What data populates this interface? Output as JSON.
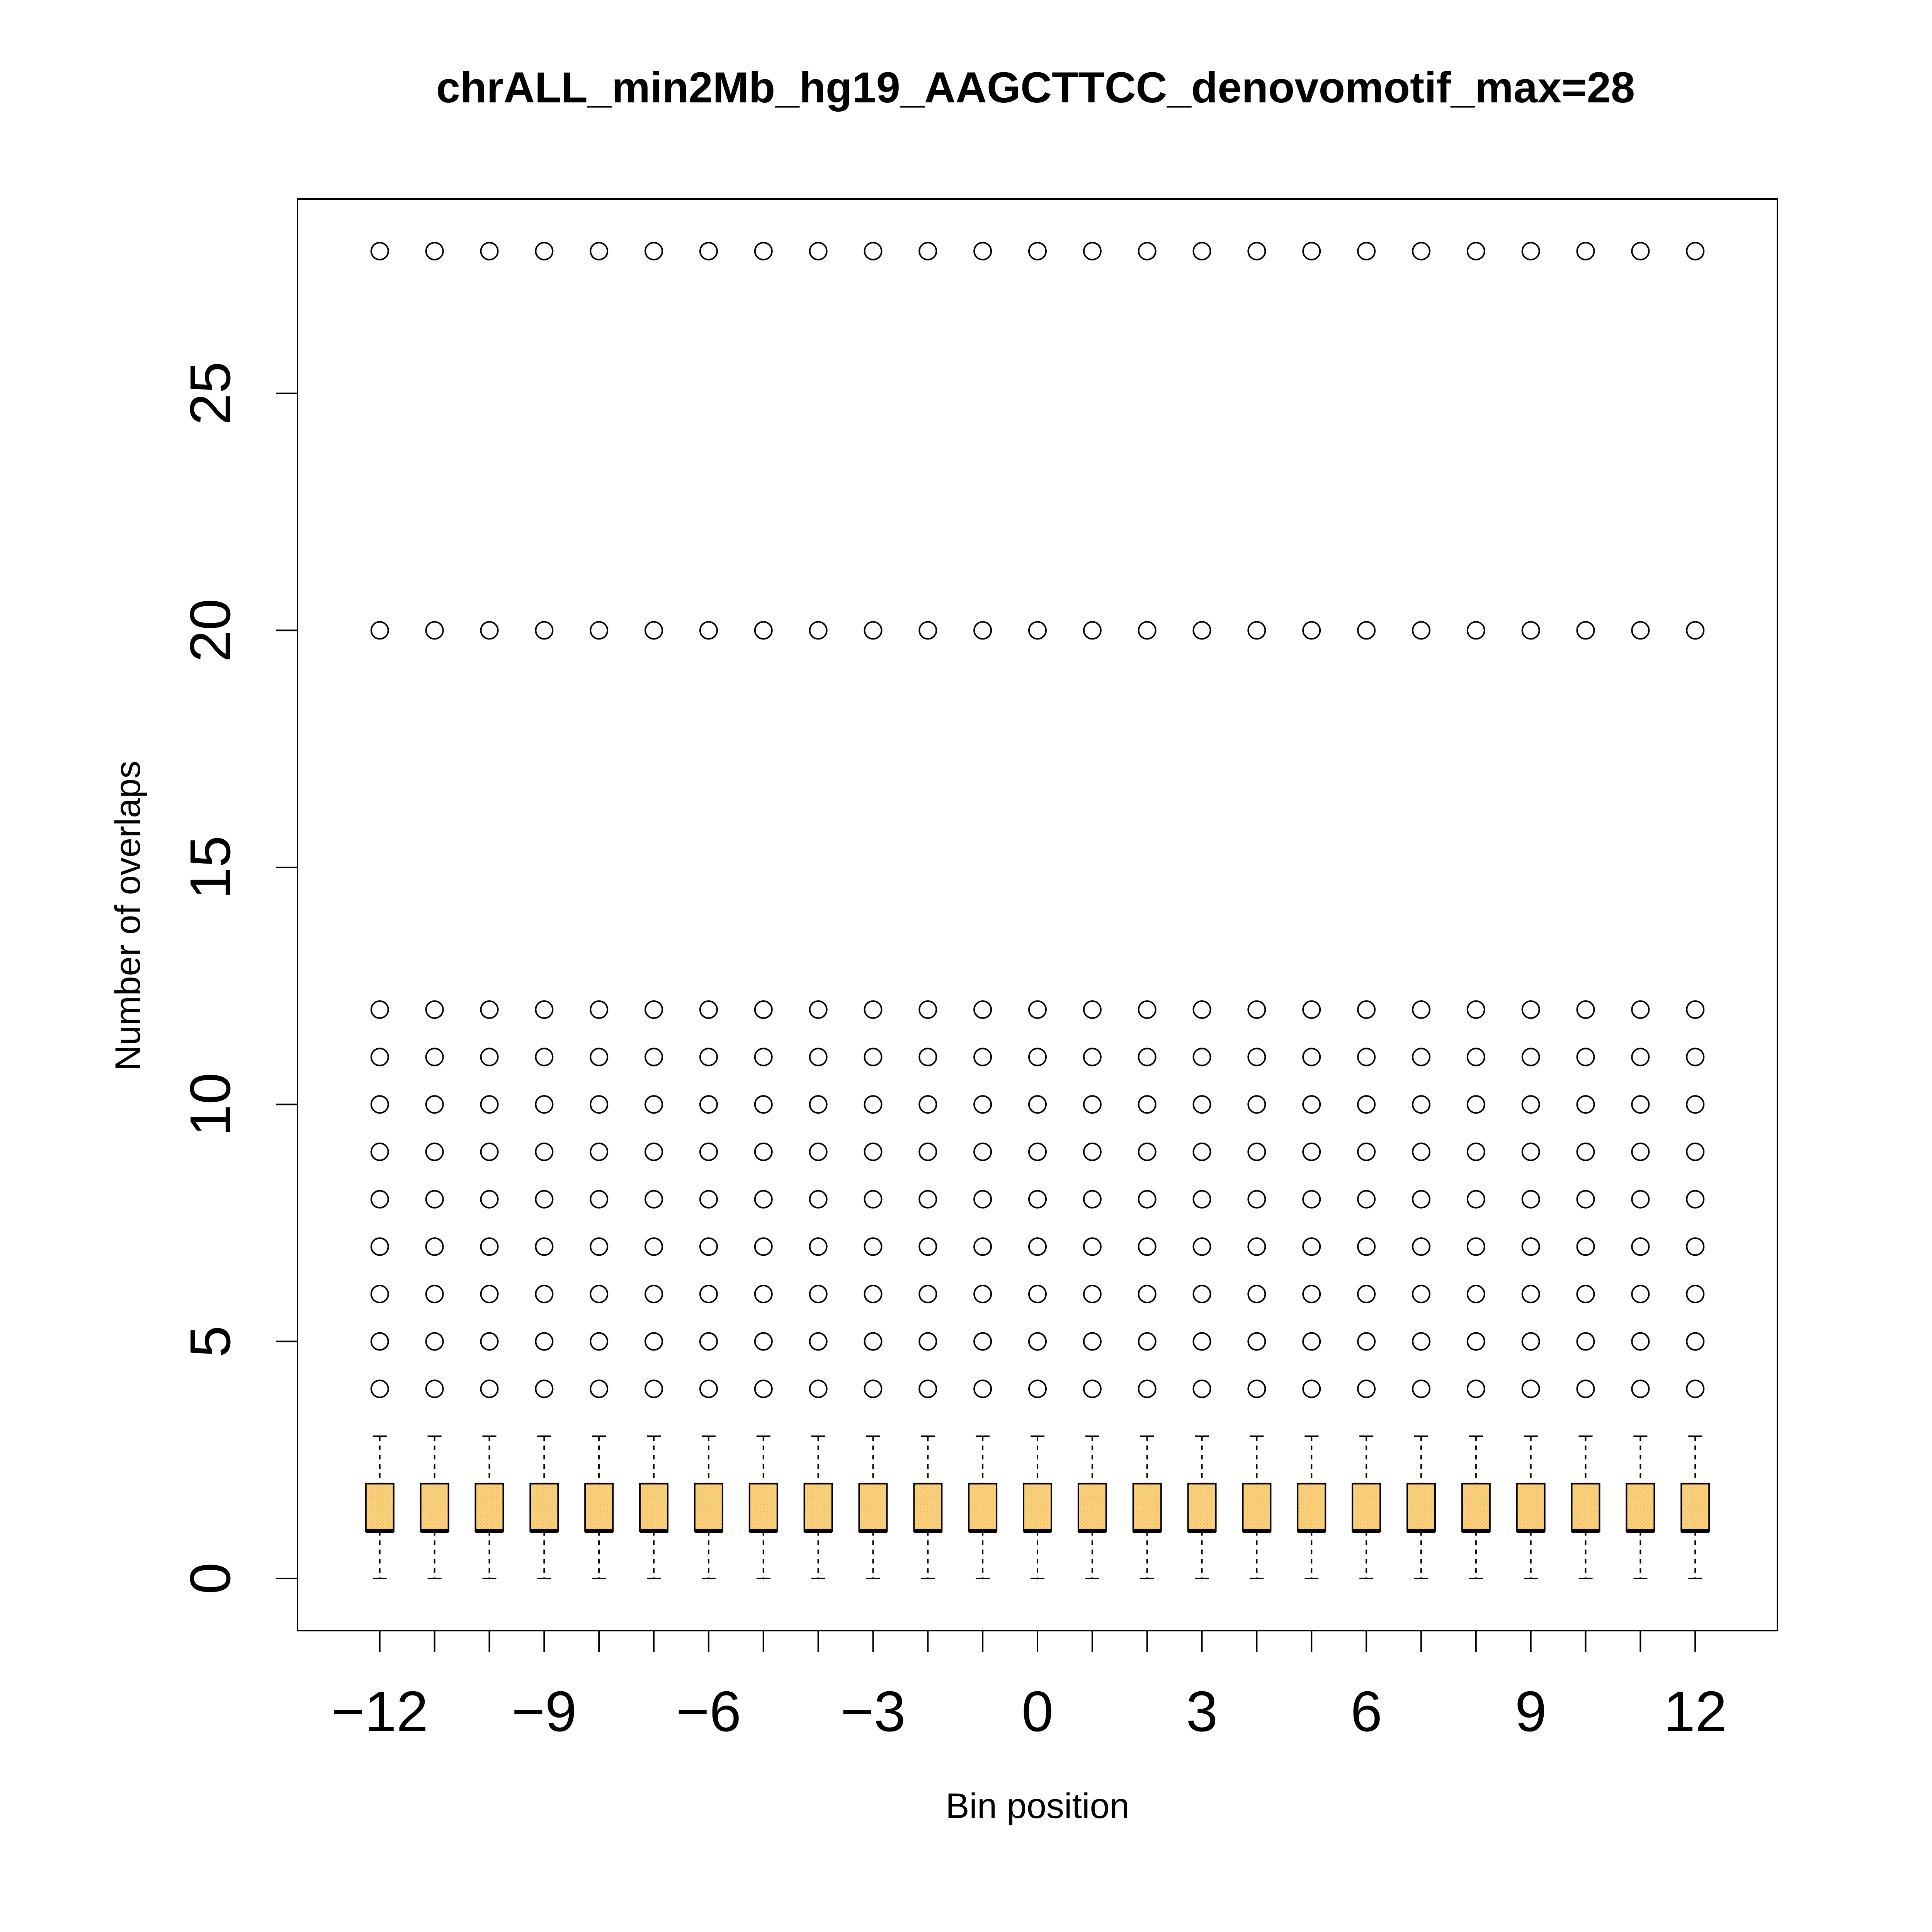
{
  "chart_data": {
    "type": "box",
    "title": "chrALL_min2Mb_hg19_AAGCTTCC_denovomotif_max=28",
    "xlabel": "Bin position",
    "ylabel": "Number of overlaps",
    "x_ticks": [
      -12,
      -11,
      -10,
      -9,
      -8,
      -7,
      -6,
      -5,
      -4,
      -3,
      -2,
      -1,
      0,
      1,
      2,
      3,
      4,
      5,
      6,
      7,
      8,
      9,
      10,
      11,
      12
    ],
    "x_tick_labels": [
      "−12",
      "",
      "",
      "−9",
      "",
      "",
      "−6",
      "",
      "",
      "−3",
      "",
      "",
      "0",
      "",
      "",
      "3",
      "",
      "",
      "6",
      "",
      "",
      "9",
      "",
      "",
      "12"
    ],
    "y_ticks": [
      0,
      5,
      10,
      15,
      20,
      25
    ],
    "y_tick_labels": [
      "0",
      "5",
      "10",
      "15",
      "20",
      "25"
    ],
    "ylim": [
      -1.1,
      29.1
    ],
    "box_stats": {
      "whisker_low": 0,
      "q1": 1,
      "median": 1,
      "q3": 2,
      "whisker_high": 3
    },
    "outliers": [
      4,
      5,
      6,
      7,
      8,
      9,
      10,
      11,
      12,
      20,
      28
    ],
    "box_color": "#FFD27F",
    "box_fill_pattern": "dotted",
    "grid": false,
    "legend": "none"
  }
}
